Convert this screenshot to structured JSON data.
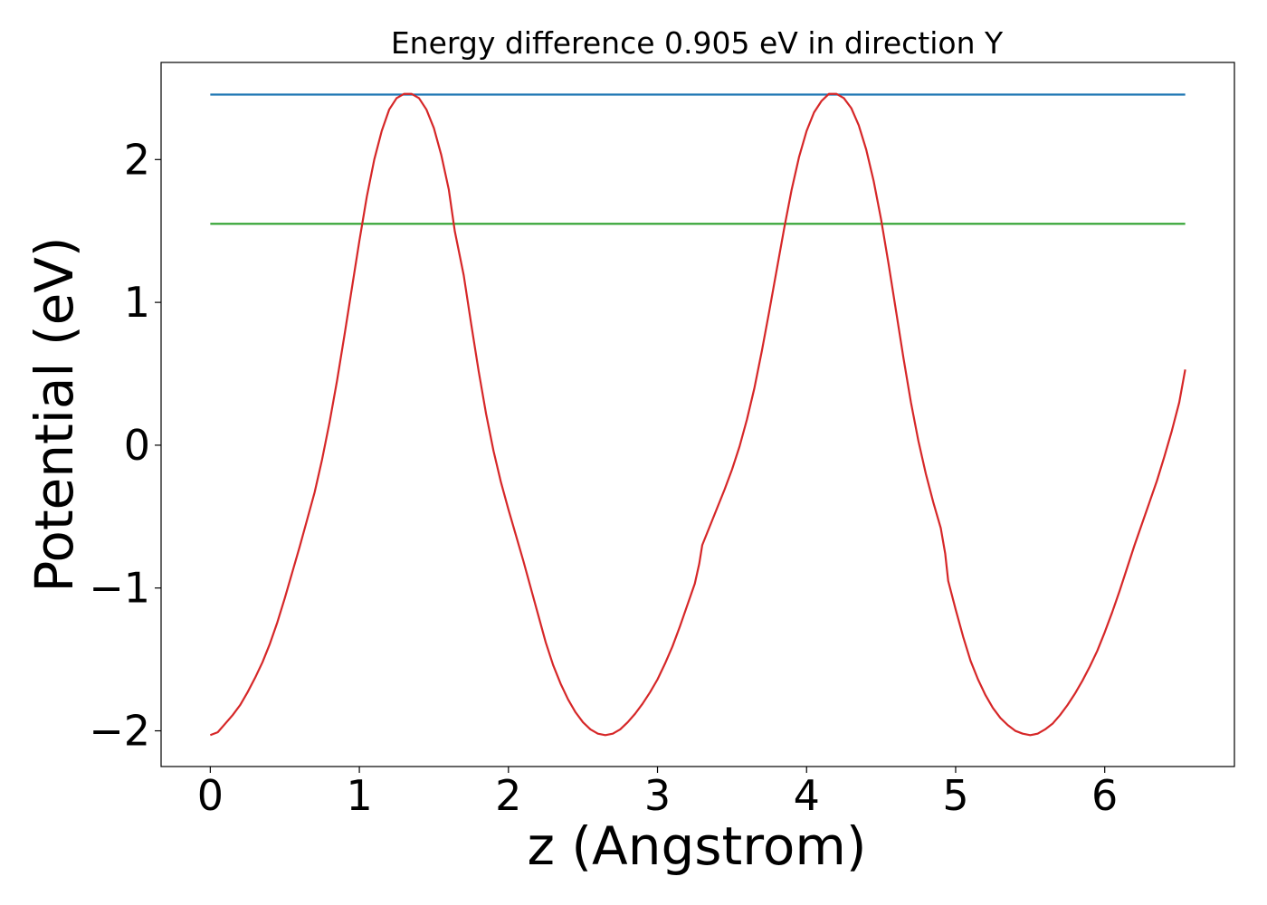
{
  "chart_data": {
    "type": "line",
    "title": "Energy difference 0.905 eV in direction Y",
    "xlabel": "z (Angstrom)",
    "ylabel": "Potential (eV)",
    "xlim": [
      -0.33,
      6.87
    ],
    "ylim": [
      -2.25,
      2.68
    ],
    "x_ticks": [
      0,
      1,
      2,
      3,
      4,
      5,
      6
    ],
    "x_tick_labels": [
      "0",
      "1",
      "2",
      "3",
      "4",
      "5",
      "6"
    ],
    "y_ticks": [
      -2,
      -1,
      0,
      1,
      2
    ],
    "y_tick_labels": [
      "−2",
      "−1",
      "0",
      "1",
      "2"
    ],
    "grid": false,
    "legend": "none",
    "series": [
      {
        "color": "#d62728",
        "x": [
          0.0,
          0.05,
          0.1,
          0.15,
          0.2,
          0.25,
          0.3,
          0.35,
          0.4,
          0.45,
          0.5,
          0.55,
          0.6,
          0.65,
          0.7,
          0.75,
          0.8,
          0.85,
          0.9,
          0.95,
          1.0,
          1.05,
          1.1,
          1.15,
          1.2,
          1.25,
          1.3,
          1.35,
          1.4,
          1.45,
          1.5,
          1.55,
          1.6,
          1.64,
          1.7,
          1.75,
          1.8,
          1.85,
          1.9,
          1.95,
          2.0,
          2.05,
          2.1,
          2.15,
          2.2,
          2.25,
          2.3,
          2.35,
          2.4,
          2.45,
          2.5,
          2.55,
          2.6,
          2.65,
          2.7,
          2.75,
          2.8,
          2.85,
          2.9,
          2.95,
          3.0,
          3.05,
          3.1,
          3.15,
          3.2,
          3.25,
          3.28,
          3.3,
          3.35,
          3.4,
          3.45,
          3.5,
          3.55,
          3.6,
          3.65,
          3.7,
          3.75,
          3.8,
          3.85,
          3.9,
          3.95,
          4.0,
          4.05,
          4.1,
          4.15,
          4.2,
          4.25,
          4.3,
          4.35,
          4.4,
          4.45,
          4.5,
          4.55,
          4.6,
          4.65,
          4.7,
          4.75,
          4.8,
          4.85,
          4.9,
          4.93,
          4.95,
          5.0,
          5.05,
          5.1,
          5.15,
          5.2,
          5.25,
          5.3,
          5.35,
          5.4,
          5.45,
          5.5,
          5.55,
          5.6,
          5.65,
          5.7,
          5.75,
          5.8,
          5.85,
          5.9,
          5.95,
          6.0,
          6.05,
          6.1,
          6.15,
          6.2,
          6.25,
          6.3,
          6.35,
          6.4,
          6.45,
          6.5,
          6.54
        ],
        "y": [
          -2.03,
          -2.01,
          -1.95,
          -1.89,
          -1.82,
          -1.73,
          -1.63,
          -1.52,
          -1.39,
          -1.24,
          -1.07,
          -0.89,
          -0.71,
          -0.52,
          -0.33,
          -0.1,
          0.16,
          0.45,
          0.77,
          1.1,
          1.43,
          1.74,
          2.0,
          2.2,
          2.35,
          2.43,
          2.46,
          2.46,
          2.43,
          2.35,
          2.22,
          2.03,
          1.79,
          1.5,
          1.19,
          0.85,
          0.52,
          0.22,
          -0.04,
          -0.26,
          -0.45,
          -0.63,
          -0.81,
          -1.0,
          -1.19,
          -1.38,
          -1.54,
          -1.67,
          -1.78,
          -1.87,
          -1.94,
          -1.99,
          -2.02,
          -2.03,
          -2.02,
          -1.99,
          -1.94,
          -1.88,
          -1.81,
          -1.73,
          -1.64,
          -1.53,
          -1.41,
          -1.27,
          -1.12,
          -0.97,
          -0.83,
          -0.7,
          -0.57,
          -0.44,
          -0.31,
          -0.17,
          -0.01,
          0.18,
          0.4,
          0.66,
          0.94,
          1.23,
          1.52,
          1.79,
          2.02,
          2.2,
          2.33,
          2.41,
          2.46,
          2.46,
          2.43,
          2.36,
          2.24,
          2.07,
          1.85,
          1.58,
          1.27,
          0.94,
          0.61,
          0.3,
          0.03,
          -0.2,
          -0.4,
          -0.58,
          -0.76,
          -0.95,
          -1.15,
          -1.34,
          -1.51,
          -1.64,
          -1.75,
          -1.84,
          -1.91,
          -1.96,
          -2.0,
          -2.02,
          -2.03,
          -2.02,
          -1.99,
          -1.95,
          -1.89,
          -1.82,
          -1.74,
          -1.65,
          -1.55,
          -1.44,
          -1.31,
          -1.17,
          -1.02,
          -0.86,
          -0.7,
          -0.55,
          -0.4,
          -0.25,
          -0.08,
          0.1,
          0.3,
          0.53
        ],
        "note_removed": ""
      },
      {
        "color": "#1f77b4",
        "x": [
          0,
          6.54
        ],
        "y": [
          2.455,
          2.455
        ]
      },
      {
        "color": "#2ca02c",
        "x": [
          0,
          6.54
        ],
        "y": [
          1.55,
          1.55
        ]
      }
    ]
  }
}
